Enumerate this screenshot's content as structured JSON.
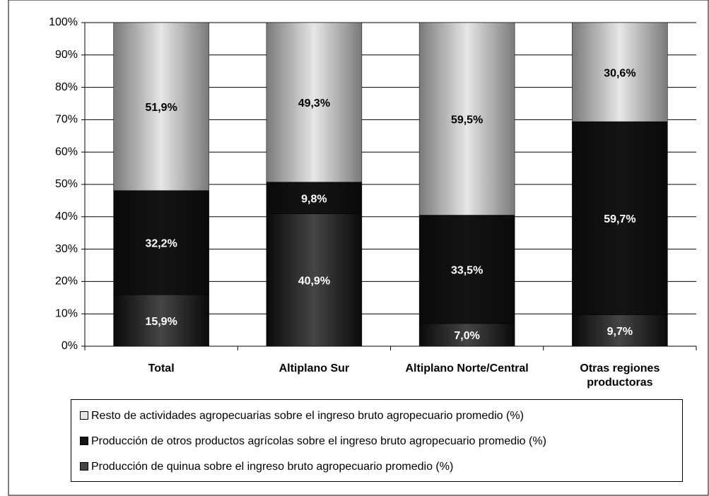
{
  "chart_data": {
    "type": "stacked_bar",
    "categories": [
      "Total",
      "Altiplano Sur",
      "Altiplano Norte/Central",
      "Otras regiones productoras"
    ],
    "series": [
      {
        "name": "Producción de quinua sobre el ingreso bruto agropecuario promedio (%)",
        "color": "#454545",
        "values": [
          15.9,
          40.9,
          7.0,
          9.7
        ],
        "value_labels": [
          "15,9%",
          "40,9%",
          "7,0%",
          "9,7%"
        ]
      },
      {
        "name": "Producción de otros productos agrícolas sobre el ingreso bruto agropecuario promedio (%)",
        "color": "#141414",
        "values": [
          32.2,
          9.8,
          33.5,
          59.7
        ],
        "value_labels": [
          "32,2%",
          "9,8%",
          "33,5%",
          "59,7%"
        ]
      },
      {
        "name": "Resto de actividades agropecuarias sobre el ingreso bruto agropecuario promedio (%)",
        "color": "#e6e6e6",
        "values": [
          51.9,
          49.3,
          59.5,
          30.6
        ],
        "value_labels": [
          "51,9%",
          "49,3%",
          "59,5%",
          "30,6%"
        ]
      }
    ],
    "ylim": [
      0,
      100
    ],
    "yticks": [
      {
        "value": 0,
        "label": "0%"
      },
      {
        "value": 10,
        "label": "10%"
      },
      {
        "value": 20,
        "label": "20%"
      },
      {
        "value": 30,
        "label": "30%"
      },
      {
        "value": 40,
        "label": "40%"
      },
      {
        "value": 50,
        "label": "50%"
      },
      {
        "value": 60,
        "label": "60%"
      },
      {
        "value": 70,
        "label": "70%"
      },
      {
        "value": 80,
        "label": "80%"
      },
      {
        "value": 90,
        "label": "90%"
      },
      {
        "value": 100,
        "label": "100%"
      }
    ],
    "grid": true
  }
}
